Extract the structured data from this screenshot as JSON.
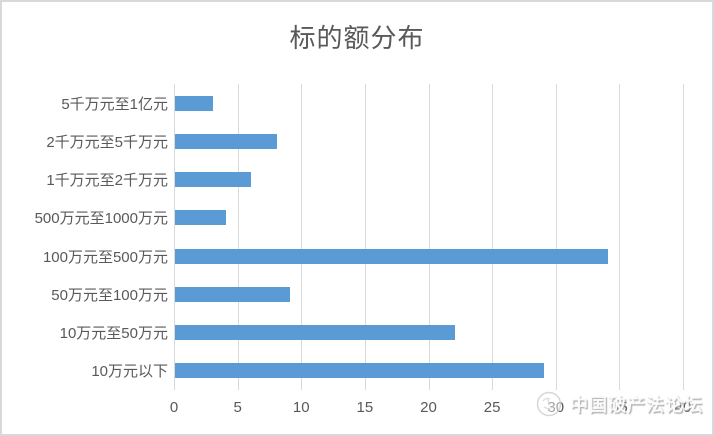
{
  "chart_data": {
    "type": "bar",
    "orientation": "horizontal",
    "title": "标的额分布",
    "categories": [
      "5千万元至1亿元",
      "2千万元至5千万元",
      "1千万元至2千万元",
      "500万元至1000万元",
      "100万元至500万元",
      "50万元至100万元",
      "10万元至50万元",
      "10万元以下"
    ],
    "values": [
      3,
      8,
      6,
      4,
      34,
      9,
      22,
      29
    ],
    "xlabel": "",
    "ylabel": "",
    "xlim": [
      0,
      40
    ],
    "xticks": [
      0,
      5,
      10,
      15,
      20,
      25,
      30,
      35,
      40
    ],
    "grid": true,
    "legend": "none",
    "bar_color": "#5B9BD5",
    "grid_color": "#D9D9D9",
    "text_color": "#595959"
  },
  "watermark": {
    "text": "中国破产法论坛",
    "logo": "circular-emblem"
  }
}
